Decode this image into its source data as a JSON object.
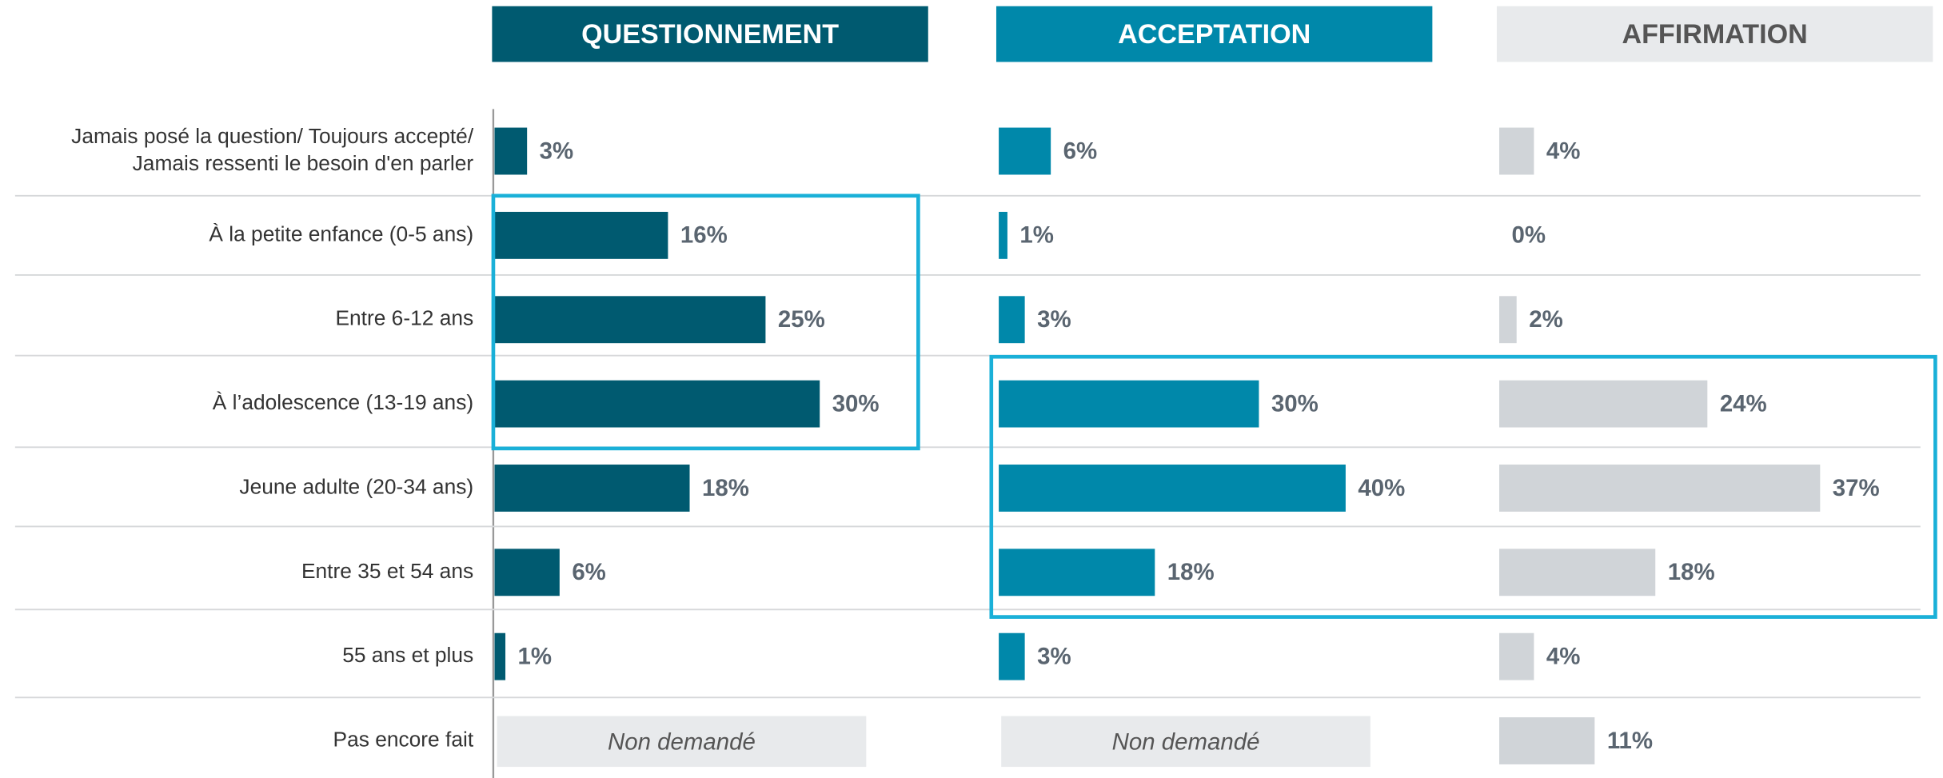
{
  "chart_data": {
    "type": "bar",
    "orientation": "horizontal",
    "categories": [
      "Jamais posé la question/ Toujours accepté/\nJamais ressenti le besoin d'en parler",
      "À la petite enfance (0-5 ans)",
      "Entre 6-12 ans",
      "À l’adolescence (13-19 ans)",
      "Jeune adulte (20-34 ans)",
      "Entre 35 et 54 ans",
      "55 ans et plus",
      "Pas encore fait"
    ],
    "series": [
      {
        "name": "QUESTIONNEMENT",
        "color": "#005a70",
        "header_text_color": "#ffffff",
        "xlim": [
          0,
          40
        ],
        "values": [
          3,
          16,
          25,
          30,
          18,
          6,
          1,
          null
        ],
        "value_labels": [
          "3%",
          "16%",
          "25%",
          "30%",
          "18%",
          "6%",
          "1%",
          "Non demandé"
        ]
      },
      {
        "name": "ACCEPTATION",
        "color": "#0088aa",
        "header_text_color": "#ffffff",
        "xlim": [
          0,
          50
        ],
        "values": [
          6,
          1,
          3,
          30,
          40,
          18,
          3,
          null
        ],
        "value_labels": [
          "6%",
          "1%",
          "3%",
          "30%",
          "40%",
          "18%",
          "3%",
          "Non demandé"
        ]
      },
      {
        "name": "AFFIRMATION",
        "color": "#d0d4d8",
        "header_color": "#e8eaec",
        "header_text_color": "#555555",
        "xlim": [
          0,
          50
        ],
        "values": [
          4,
          0,
          2,
          24,
          37,
          18,
          4,
          11
        ],
        "value_labels": [
          "4%",
          "0%",
          "2%",
          "24%",
          "37%",
          "18%",
          "4%",
          "11%"
        ]
      }
    ]
  }
}
